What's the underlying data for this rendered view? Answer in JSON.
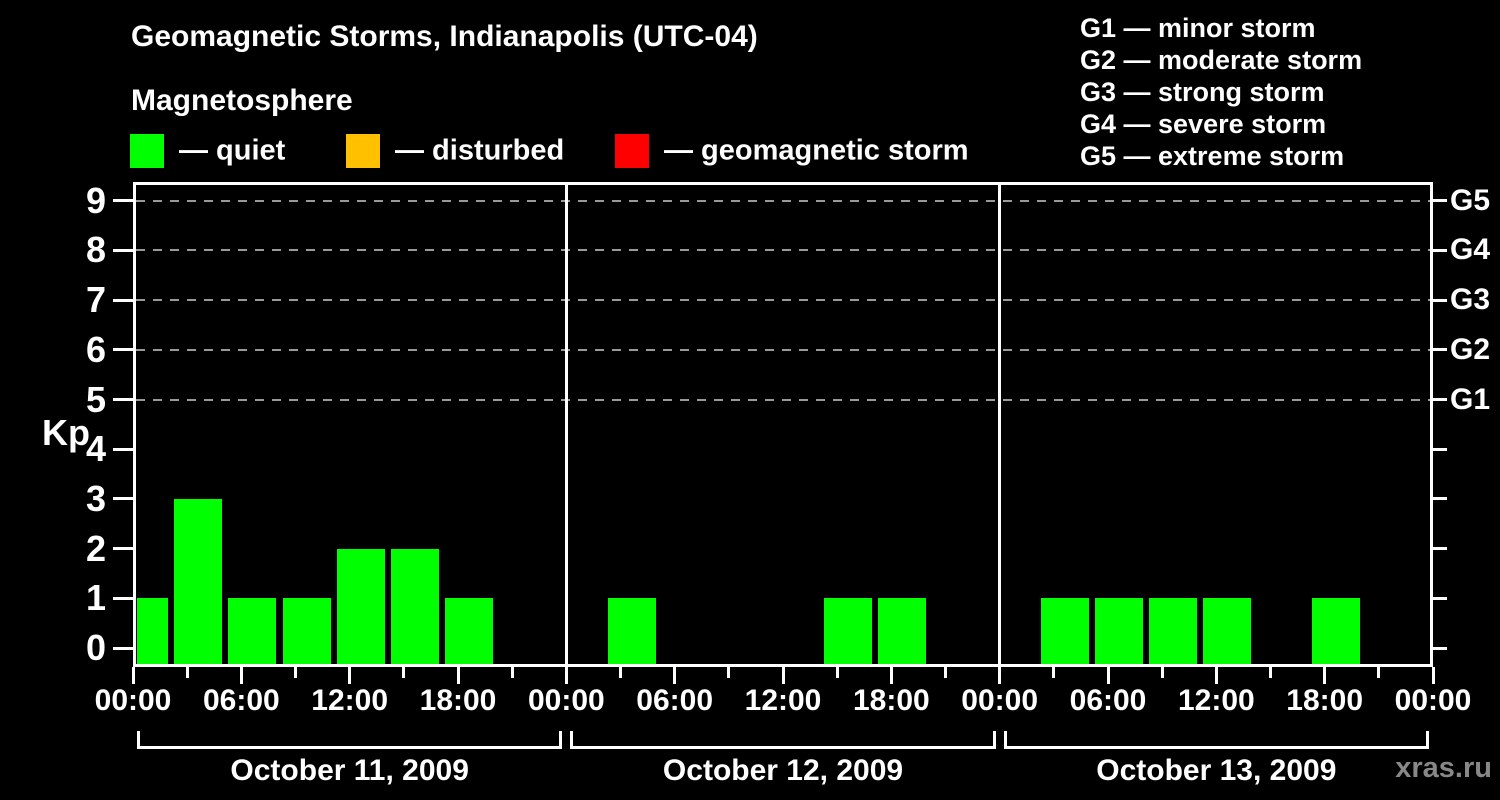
{
  "header": {
    "title": "Geomagnetic Storms, Indianapolis (UTC-04)",
    "subtitle": "Magnetosphere"
  },
  "legend": {
    "items": [
      {
        "name": "quiet",
        "label": "— quiet",
        "color": "#00ff00"
      },
      {
        "name": "disturbed",
        "label": "— disturbed",
        "color": "#ffc000"
      },
      {
        "name": "geomagnetic-storm",
        "label": "— geomagnetic storm",
        "color": "#ff0000"
      }
    ]
  },
  "g_scale_legend": {
    "items": [
      "G1 — minor storm",
      "G2 — moderate storm",
      "G3 — strong storm",
      "G4 — severe storm",
      "G5 — extreme storm"
    ]
  },
  "watermark": "xras.ru",
  "colors": {
    "background": "#000000",
    "axis": "#ffffff",
    "grid": "#999999",
    "quiet": "#00ff00",
    "disturbed": "#ffc000",
    "storm": "#ff0000",
    "watermark": "#888888"
  },
  "chart_data": {
    "type": "bar",
    "title": "Geomagnetic Storms, Indianapolis (UTC-04)",
    "ylabel": "Kp",
    "ylim": [
      0,
      9
    ],
    "y_ticks": [
      0,
      1,
      2,
      3,
      4,
      5,
      6,
      7,
      8,
      9
    ],
    "grid_levels": [
      5,
      6,
      7,
      8,
      9
    ],
    "grid_style": "dashed horizontal",
    "legend_position": "top",
    "right_axis_labels": [
      {
        "kp": 5,
        "label": "G1"
      },
      {
        "kp": 6,
        "label": "G2"
      },
      {
        "kp": 7,
        "label": "G3"
      },
      {
        "kp": 8,
        "label": "G4"
      },
      {
        "kp": 9,
        "label": "G5"
      }
    ],
    "slot_hours": 3,
    "x_tick_labels_per_day": [
      "00:00",
      "06:00",
      "12:00",
      "18:00"
    ],
    "x_final_tick_label": "00:00",
    "days": [
      {
        "date": "October 11, 2009",
        "kp_values": [
          1,
          3,
          1,
          1,
          2,
          2,
          1,
          0
        ]
      },
      {
        "date": "October 12, 2009",
        "kp_values": [
          0,
          1,
          0,
          0,
          0,
          1,
          1,
          0
        ]
      },
      {
        "date": "October 13, 2009",
        "kp_values": [
          0,
          1,
          1,
          1,
          1,
          0,
          1,
          0
        ]
      }
    ]
  }
}
